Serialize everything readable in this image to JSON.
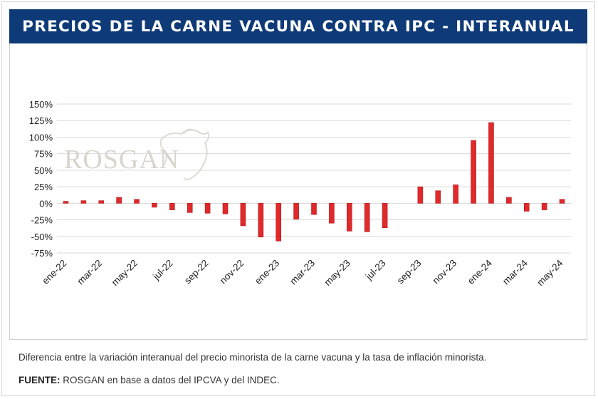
{
  "header": {
    "title": "PRECIOS DE LA CARNE VACUNA CONTRA IPC - INTERANUAL"
  },
  "watermark": {
    "text": "ROSGAN",
    "icon": "cow-head-icon"
  },
  "colors": {
    "header_bg": "#0e3a78",
    "bar": "#e0292b",
    "grid": "#d9d9d9"
  },
  "chart_data": {
    "type": "bar",
    "title": "PRECIOS DE LA CARNE VACUNA CONTRA IPC - INTERANUAL",
    "xlabel": "",
    "ylabel": "",
    "categories": [
      "ene-22",
      "feb-22",
      "mar-22",
      "abr-22",
      "may-22",
      "jun-22",
      "jul-22",
      "ago-22",
      "sep-22",
      "oct-22",
      "nov-22",
      "dic-22",
      "ene-23",
      "feb-23",
      "mar-23",
      "abr-23",
      "may-23",
      "jun-23",
      "jul-23",
      "ago-23",
      "sep-23",
      "oct-23",
      "nov-23",
      "dic-23",
      "ene-24",
      "feb-24",
      "mar-24",
      "abr-24",
      "may-24"
    ],
    "values": [
      3,
      4,
      4,
      9,
      6,
      -6,
      -10,
      -14,
      -15,
      -16,
      -34,
      -51,
      -57,
      -24,
      -17,
      -30,
      -42,
      -43,
      -37,
      null,
      25,
      19,
      28,
      95,
      122,
      9,
      -12,
      -10,
      6
    ],
    "tick_labels": [
      "ene-22",
      "mar-22",
      "may-22",
      "jul-22",
      "sep-22",
      "nov-22",
      "ene-23",
      "mar-23",
      "may-23",
      "jul-23",
      "sep-23",
      "nov-23",
      "ene-24",
      "mar-24",
      "may-24"
    ],
    "y_ticks": [
      "150%",
      "125%",
      "100%",
      "75%",
      "50%",
      "25%",
      "0%",
      "-25%",
      "-50%",
      "-75%"
    ],
    "ylim": [
      -75,
      150
    ],
    "unit": "%",
    "grid": true,
    "legend": "none"
  },
  "footer": {
    "caption": "Diferencia entre la variación interanual del precio minorista de la carne vacuna y la tasa de inflación minorista.",
    "source_label": "FUENTE:",
    "source_text": " ROSGAN en base a datos del IPCVA y del INDEC."
  }
}
